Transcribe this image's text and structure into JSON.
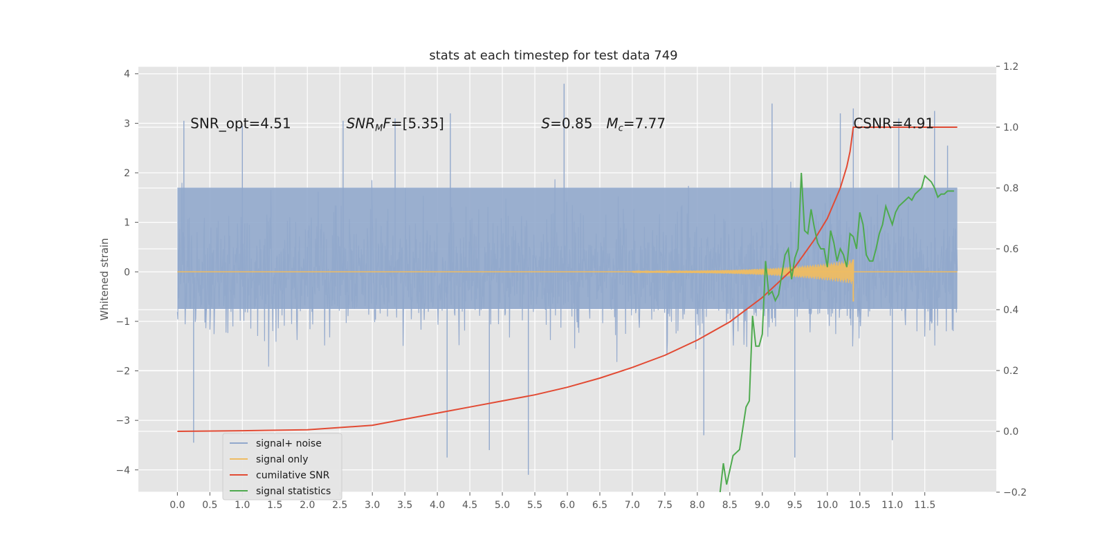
{
  "chart_data": {
    "type": "line",
    "title": "stats at each timestep for test data 749",
    "xlabel": "",
    "ylabel": "Whitened strain",
    "y2label": "",
    "xlim": [
      -0.6,
      12.6
    ],
    "ylim": [
      -4.45,
      4.15
    ],
    "y2lim": [
      -0.2,
      1.2
    ],
    "grid": true,
    "legend_position": "lower-left",
    "xticks": [
      "0.0",
      "0.5",
      "1.0",
      "1.5",
      "2.0",
      "2.5",
      "3.0",
      "3.5",
      "4.0",
      "4.5",
      "5.0",
      "5.5",
      "6.0",
      "6.5",
      "7.0",
      "7.5",
      "8.0",
      "8.5",
      "9.0",
      "9.5",
      "10.0",
      "10.5",
      "11.0",
      "11.5"
    ],
    "yticks": [
      "4",
      "3",
      "2",
      "1",
      "0",
      "−1",
      "−2",
      "−3",
      "−4"
    ],
    "y2ticks": [
      "1.2",
      "1.0",
      "0.8",
      "0.6",
      "0.4",
      "0.2",
      "0.0",
      "−0.2"
    ],
    "annotations": [
      {
        "id": "snr-opt",
        "text": "SNR_opt=4.51",
        "x": 0.2,
        "y": 3.0
      },
      {
        "id": "snr-mf",
        "text": "SNR_MF=[5.35]",
        "x": 2.6,
        "y": 3.0
      },
      {
        "id": "s-value",
        "text": "S=0.85",
        "x": 5.6,
        "y": 3.0
      },
      {
        "id": "mc-value",
        "text": "M_c=7.77",
        "x": 6.6,
        "y": 3.0
      },
      {
        "id": "csnr",
        "text": "CSNR=4.91",
        "x": 10.4,
        "y": 3.0
      }
    ],
    "series": [
      {
        "name": "signal+ noise",
        "color": "#91a8cc",
        "axis": "left",
        "x_range": [
          0.0,
          12.0
        ],
        "envelope_core": [
          -0.75,
          1.7
        ],
        "peaks": [
          [
            0.1,
            3.05
          ],
          [
            0.25,
            -3.45
          ],
          [
            1.0,
            2.95
          ],
          [
            2.55,
            3.05
          ],
          [
            3.35,
            3.1
          ],
          [
            4.2,
            3.2
          ],
          [
            4.15,
            -3.75
          ],
          [
            4.8,
            -3.6
          ],
          [
            5.4,
            -4.1
          ],
          [
            5.95,
            3.8
          ],
          [
            8.1,
            -3.3
          ],
          [
            9.15,
            3.4
          ],
          [
            9.5,
            -3.75
          ],
          [
            10.2,
            3.2
          ],
          [
            10.4,
            3.3
          ],
          [
            11.0,
            -3.4
          ],
          [
            11.1,
            3.1
          ],
          [
            11.65,
            3.25
          ],
          [
            11.85,
            2.55
          ]
        ]
      },
      {
        "name": "signal only",
        "color": "#eebc62",
        "axis": "left",
        "x_range": [
          0.0,
          12.0
        ],
        "chirp_end": 10.4,
        "chirp_peak": [
          0.25,
          -0.6
        ]
      },
      {
        "name": "cumilative SNR",
        "color": "#e24a33",
        "axis": "right",
        "x": [
          0.0,
          1.0,
          2.0,
          3.0,
          3.5,
          4.0,
          4.5,
          5.0,
          5.5,
          6.0,
          6.5,
          7.0,
          7.5,
          8.0,
          8.5,
          9.0,
          9.5,
          9.8,
          10.0,
          10.2,
          10.3,
          10.35,
          10.4,
          10.5,
          11.0,
          11.5,
          12.0
        ],
        "y": [
          0.0,
          0.002,
          0.005,
          0.02,
          0.04,
          0.06,
          0.08,
          0.1,
          0.12,
          0.145,
          0.175,
          0.21,
          0.25,
          0.3,
          0.36,
          0.44,
          0.54,
          0.63,
          0.7,
          0.8,
          0.87,
          0.92,
          1.0,
          1.0,
          1.0,
          1.0,
          1.0
        ]
      },
      {
        "name": "signal statistics",
        "color": "#4eaa4e",
        "axis": "right",
        "x": [
          8.35,
          8.4,
          8.45,
          8.55,
          8.65,
          8.75,
          8.8,
          8.85,
          8.9,
          8.95,
          9.0,
          9.05,
          9.1,
          9.15,
          9.2,
          9.25,
          9.35,
          9.4,
          9.45,
          9.5,
          9.55,
          9.6,
          9.65,
          9.7,
          9.75,
          9.8,
          9.85,
          9.9,
          9.95,
          10.0,
          10.05,
          10.1,
          10.15,
          10.2,
          10.25,
          10.3,
          10.35,
          10.4,
          10.45,
          10.5,
          10.55,
          10.6,
          10.65,
          10.7,
          10.75,
          10.8,
          10.85,
          10.9,
          11.0,
          11.05,
          11.1,
          11.15,
          11.2,
          11.25,
          11.3,
          11.35,
          11.4,
          11.45,
          11.5,
          11.55,
          11.6,
          11.65,
          11.7,
          11.75,
          11.8,
          11.85,
          11.9,
          11.95
        ],
        "y": [
          -0.2,
          -0.105,
          -0.175,
          -0.08,
          -0.06,
          0.08,
          0.1,
          0.38,
          0.28,
          0.28,
          0.32,
          0.56,
          0.45,
          0.46,
          0.43,
          0.45,
          0.58,
          0.6,
          0.5,
          0.57,
          0.6,
          0.85,
          0.66,
          0.65,
          0.73,
          0.67,
          0.62,
          0.6,
          0.6,
          0.54,
          0.66,
          0.62,
          0.56,
          0.6,
          0.58,
          0.54,
          0.65,
          0.64,
          0.6,
          0.72,
          0.68,
          0.58,
          0.56,
          0.56,
          0.6,
          0.65,
          0.68,
          0.74,
          0.68,
          0.72,
          0.74,
          0.75,
          0.76,
          0.77,
          0.76,
          0.78,
          0.79,
          0.8,
          0.84,
          0.83,
          0.82,
          0.8,
          0.77,
          0.78,
          0.78,
          0.79,
          0.79,
          0.79
        ]
      }
    ]
  }
}
